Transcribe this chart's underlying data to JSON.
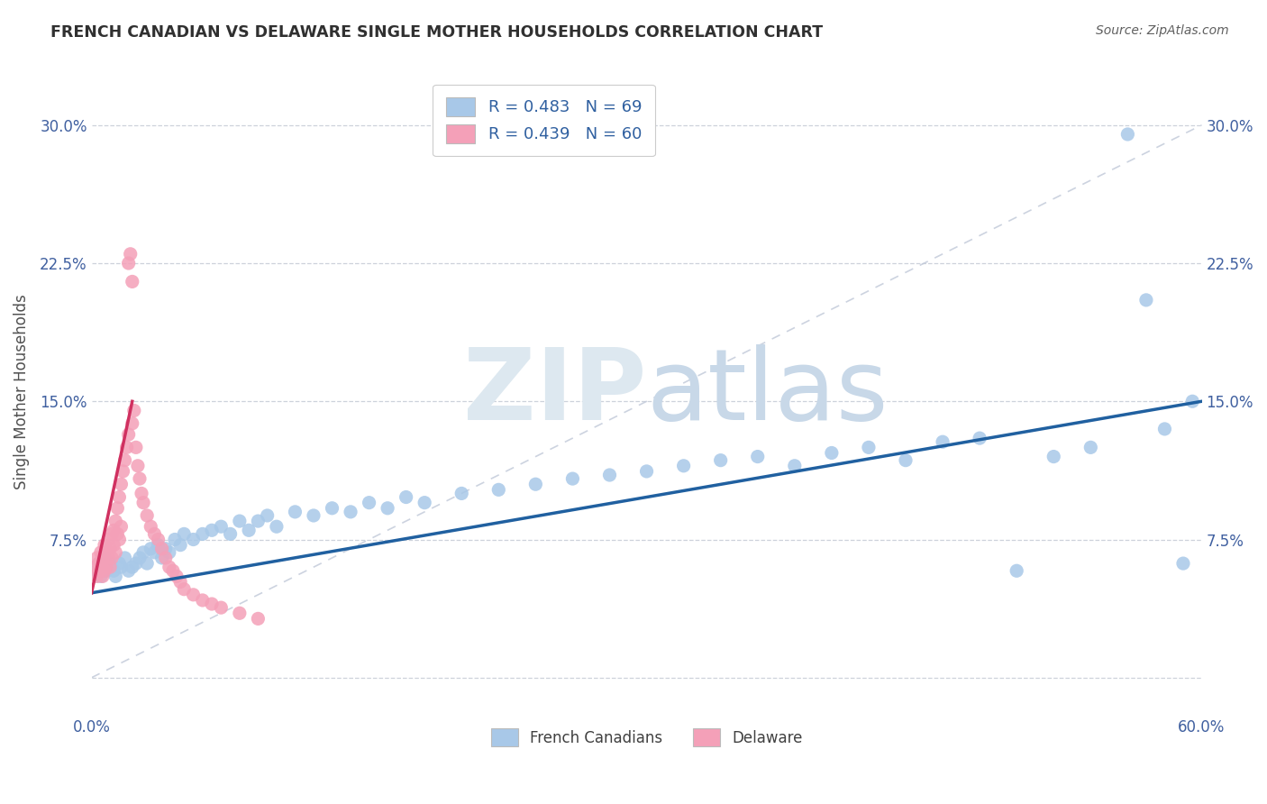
{
  "title": "FRENCH CANADIAN VS DELAWARE SINGLE MOTHER HOUSEHOLDS CORRELATION CHART",
  "source": "Source: ZipAtlas.com",
  "ylabel": "Single Mother Households",
  "xlim": [
    0.0,
    0.6
  ],
  "ylim": [
    -0.02,
    0.33
  ],
  "xticks": [
    0.0,
    0.1,
    0.2,
    0.3,
    0.4,
    0.5,
    0.6
  ],
  "xticklabels": [
    "0.0%",
    "",
    "",
    "",
    "",
    "",
    "60.0%"
  ],
  "yticks": [
    0.0,
    0.075,
    0.15,
    0.225,
    0.3
  ],
  "yticklabels": [
    "",
    "7.5%",
    "15.0%",
    "22.5%",
    "30.0%"
  ],
  "R_blue": 0.483,
  "N_blue": 69,
  "R_pink": 0.439,
  "N_pink": 60,
  "blue_color": "#a8c8e8",
  "pink_color": "#f4a0b8",
  "blue_line_color": "#2060a0",
  "pink_line_color": "#d03060",
  "diag_line_color": "#c0c8d8",
  "grid_color": "#c8cdd8",
  "legend_label_blue": "French Canadians",
  "legend_label_pink": "Delaware",
  "title_color": "#303030",
  "source_color": "#606060",
  "axis_label_color": "#505050",
  "tick_label_color": "#4060a0",
  "watermark_zip_color": "#dde8f0",
  "watermark_atlas_color": "#c8d8e8",
  "blue_scatter": [
    [
      0.003,
      0.058
    ],
    [
      0.004,
      0.062
    ],
    [
      0.005,
      0.055
    ],
    [
      0.006,
      0.06
    ],
    [
      0.007,
      0.065
    ],
    [
      0.008,
      0.058
    ],
    [
      0.009,
      0.06
    ],
    [
      0.01,
      0.062
    ],
    [
      0.012,
      0.058
    ],
    [
      0.013,
      0.055
    ],
    [
      0.015,
      0.062
    ],
    [
      0.016,
      0.06
    ],
    [
      0.018,
      0.065
    ],
    [
      0.02,
      0.058
    ],
    [
      0.022,
      0.06
    ],
    [
      0.024,
      0.062
    ],
    [
      0.026,
      0.065
    ],
    [
      0.028,
      0.068
    ],
    [
      0.03,
      0.062
    ],
    [
      0.032,
      0.07
    ],
    [
      0.034,
      0.068
    ],
    [
      0.036,
      0.072
    ],
    [
      0.038,
      0.065
    ],
    [
      0.04,
      0.07
    ],
    [
      0.042,
      0.068
    ],
    [
      0.045,
      0.075
    ],
    [
      0.048,
      0.072
    ],
    [
      0.05,
      0.078
    ],
    [
      0.055,
      0.075
    ],
    [
      0.06,
      0.078
    ],
    [
      0.065,
      0.08
    ],
    [
      0.07,
      0.082
    ],
    [
      0.075,
      0.078
    ],
    [
      0.08,
      0.085
    ],
    [
      0.085,
      0.08
    ],
    [
      0.09,
      0.085
    ],
    [
      0.095,
      0.088
    ],
    [
      0.1,
      0.082
    ],
    [
      0.11,
      0.09
    ],
    [
      0.12,
      0.088
    ],
    [
      0.13,
      0.092
    ],
    [
      0.14,
      0.09
    ],
    [
      0.15,
      0.095
    ],
    [
      0.16,
      0.092
    ],
    [
      0.17,
      0.098
    ],
    [
      0.18,
      0.095
    ],
    [
      0.2,
      0.1
    ],
    [
      0.22,
      0.102
    ],
    [
      0.24,
      0.105
    ],
    [
      0.26,
      0.108
    ],
    [
      0.28,
      0.11
    ],
    [
      0.3,
      0.112
    ],
    [
      0.32,
      0.115
    ],
    [
      0.34,
      0.118
    ],
    [
      0.36,
      0.12
    ],
    [
      0.38,
      0.115
    ],
    [
      0.4,
      0.122
    ],
    [
      0.42,
      0.125
    ],
    [
      0.44,
      0.118
    ],
    [
      0.46,
      0.128
    ],
    [
      0.48,
      0.13
    ],
    [
      0.5,
      0.058
    ],
    [
      0.52,
      0.12
    ],
    [
      0.54,
      0.125
    ],
    [
      0.56,
      0.295
    ],
    [
      0.57,
      0.205
    ],
    [
      0.58,
      0.135
    ],
    [
      0.59,
      0.062
    ],
    [
      0.595,
      0.15
    ]
  ],
  "pink_scatter": [
    [
      0.002,
      0.06
    ],
    [
      0.003,
      0.065
    ],
    [
      0.003,
      0.055
    ],
    [
      0.004,
      0.062
    ],
    [
      0.004,
      0.058
    ],
    [
      0.005,
      0.06
    ],
    [
      0.005,
      0.068
    ],
    [
      0.006,
      0.055
    ],
    [
      0.006,
      0.065
    ],
    [
      0.007,
      0.058
    ],
    [
      0.007,
      0.072
    ],
    [
      0.008,
      0.06
    ],
    [
      0.008,
      0.068
    ],
    [
      0.009,
      0.065
    ],
    [
      0.009,
      0.075
    ],
    [
      0.01,
      0.06
    ],
    [
      0.01,
      0.07
    ],
    [
      0.011,
      0.078
    ],
    [
      0.011,
      0.065
    ],
    [
      0.012,
      0.08
    ],
    [
      0.012,
      0.072
    ],
    [
      0.013,
      0.085
    ],
    [
      0.013,
      0.068
    ],
    [
      0.014,
      0.092
    ],
    [
      0.014,
      0.078
    ],
    [
      0.015,
      0.098
    ],
    [
      0.015,
      0.075
    ],
    [
      0.016,
      0.105
    ],
    [
      0.016,
      0.082
    ],
    [
      0.017,
      0.112
    ],
    [
      0.018,
      0.118
    ],
    [
      0.019,
      0.125
    ],
    [
      0.02,
      0.132
    ],
    [
      0.02,
      0.225
    ],
    [
      0.021,
      0.23
    ],
    [
      0.022,
      0.215
    ],
    [
      0.022,
      0.138
    ],
    [
      0.023,
      0.145
    ],
    [
      0.024,
      0.125
    ],
    [
      0.025,
      0.115
    ],
    [
      0.026,
      0.108
    ],
    [
      0.027,
      0.1
    ],
    [
      0.028,
      0.095
    ],
    [
      0.03,
      0.088
    ],
    [
      0.032,
      0.082
    ],
    [
      0.034,
      0.078
    ],
    [
      0.036,
      0.075
    ],
    [
      0.038,
      0.07
    ],
    [
      0.04,
      0.065
    ],
    [
      0.042,
      0.06
    ],
    [
      0.044,
      0.058
    ],
    [
      0.046,
      0.055
    ],
    [
      0.048,
      0.052
    ],
    [
      0.05,
      0.048
    ],
    [
      0.055,
      0.045
    ],
    [
      0.06,
      0.042
    ],
    [
      0.065,
      0.04
    ],
    [
      0.07,
      0.038
    ],
    [
      0.08,
      0.035
    ],
    [
      0.09,
      0.032
    ]
  ],
  "blue_line_x": [
    0.0,
    0.6
  ],
  "blue_line_y": [
    0.046,
    0.15
  ],
  "pink_line_x": [
    0.0,
    0.022
  ],
  "pink_line_y": [
    0.046,
    0.15
  ]
}
